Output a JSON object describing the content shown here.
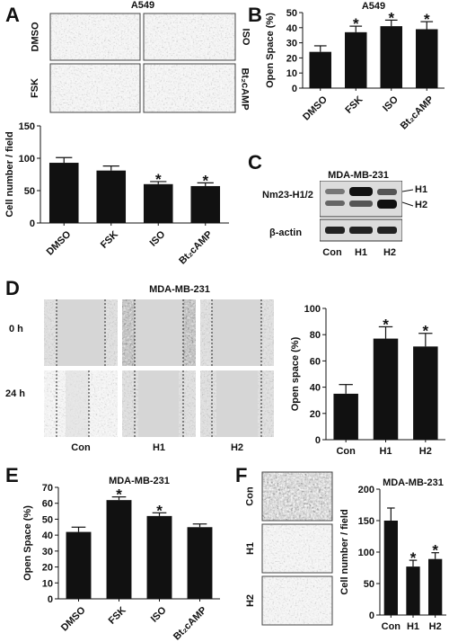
{
  "panels": {
    "A": {
      "letter": "A",
      "title": "A549",
      "row_labels": [
        "DMSO",
        "FSK"
      ],
      "col_labels": [
        "ISO",
        "Bt₂cAMP"
      ]
    },
    "B": {
      "letter": "B"
    },
    "C": {
      "letter": "C",
      "title": "MDA-MB-231",
      "row_labels": [
        "Nm23-H1/2",
        "β-actin"
      ],
      "band_labels": [
        "H1",
        "H2"
      ],
      "lane_labels": [
        "Con",
        "H1",
        "H2"
      ]
    },
    "D": {
      "letter": "D",
      "title": "MDA-MB-231",
      "row_labels": [
        "0 h",
        "24 h"
      ],
      "col_labels": [
        "Con",
        "H1",
        "H2"
      ]
    },
    "E": {
      "letter": "E"
    },
    "F": {
      "letter": "F",
      "row_labels": [
        "Con",
        "H1",
        "H2"
      ]
    }
  },
  "chart_data": [
    {
      "id": "A",
      "type": "bar",
      "categories": [
        "DMSO",
        "FSK",
        "ISO",
        "Bt₂cAMP"
      ],
      "values": [
        93,
        81,
        60,
        57
      ],
      "errors": [
        8,
        7,
        4,
        5
      ],
      "significant": [
        false,
        false,
        true,
        true
      ],
      "title": "",
      "xlabel": "",
      "ylabel": "Cell number / field",
      "ylim": [
        0,
        150
      ],
      "yticks": [
        0,
        50,
        100,
        150
      ],
      "color": "#111111"
    },
    {
      "id": "B",
      "type": "bar",
      "categories": [
        "DMSO",
        "FSK",
        "ISO",
        "Bt₂cAMP"
      ],
      "values": [
        24,
        37,
        41,
        39
      ],
      "errors": [
        4,
        4,
        4,
        5
      ],
      "significant": [
        false,
        true,
        true,
        true
      ],
      "title": "A549",
      "xlabel": "",
      "ylabel": "Open Space (%)",
      "ylim": [
        0,
        50
      ],
      "yticks": [
        0,
        10,
        20,
        30,
        40,
        50
      ],
      "color": "#111111"
    },
    {
      "id": "D",
      "type": "bar",
      "categories": [
        "Con",
        "H1",
        "H2"
      ],
      "values": [
        35,
        77,
        71
      ],
      "errors": [
        7,
        9,
        10
      ],
      "significant": [
        false,
        true,
        true
      ],
      "title": "",
      "xlabel": "",
      "ylabel": "Open space (%)",
      "ylim": [
        0,
        100
      ],
      "yticks": [
        0,
        20,
        40,
        60,
        80,
        100
      ],
      "color": "#111111"
    },
    {
      "id": "E",
      "type": "bar",
      "categories": [
        "DMSO",
        "FSK",
        "ISO",
        "Bt₂cAMP"
      ],
      "values": [
        42,
        62,
        52,
        45
      ],
      "errors": [
        3,
        2,
        2,
        2
      ],
      "significant": [
        false,
        true,
        true,
        false
      ],
      "title": "MDA-MB-231",
      "xlabel": "",
      "ylabel": "Open Space (%)",
      "ylim": [
        0,
        70
      ],
      "yticks": [
        0,
        10,
        20,
        30,
        40,
        50,
        60,
        70
      ],
      "color": "#111111"
    },
    {
      "id": "F",
      "type": "bar",
      "categories": [
        "Con",
        "H1",
        "H2"
      ],
      "values": [
        150,
        77,
        89
      ],
      "errors": [
        20,
        10,
        10
      ],
      "significant": [
        false,
        true,
        true
      ],
      "title": "MDA-MB-231",
      "xlabel": "",
      "ylabel": "Cell number / field",
      "ylim": [
        0,
        200
      ],
      "yticks": [
        0,
        50,
        100,
        150,
        200
      ],
      "color": "#111111"
    }
  ]
}
